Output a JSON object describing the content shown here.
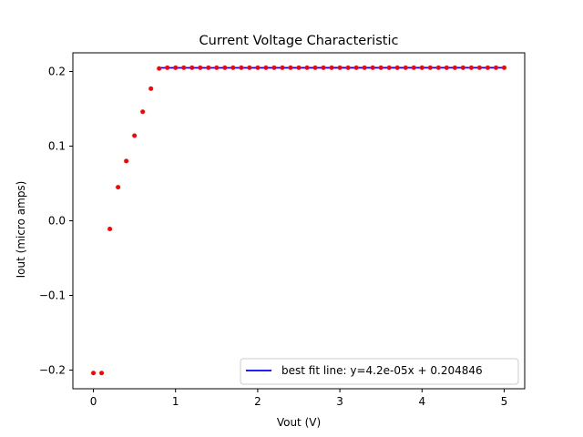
{
  "chart_data": {
    "type": "scatter",
    "title": "Current Voltage Characteristic",
    "xlabel": "Vout (V)",
    "ylabel": "Iout (micro amps)",
    "xlim": [
      -0.25,
      5.25
    ],
    "ylim": [
      -0.225,
      0.225
    ],
    "xticks": [
      0,
      1,
      2,
      3,
      4,
      5
    ],
    "xtick_labels": [
      "0",
      "1",
      "2",
      "3",
      "4",
      "5"
    ],
    "yticks": [
      -0.2,
      -0.1,
      0.0,
      0.1,
      0.2
    ],
    "ytick_labels": [
      "−0.2",
      "−0.1",
      "0.0",
      "0.1",
      "0.2"
    ],
    "grid": false,
    "legend_position": "lower-right",
    "series": [
      {
        "kind": "scatter",
        "color": "#ff0000",
        "x": [
          0.0,
          0.1,
          0.2,
          0.3,
          0.4,
          0.5,
          0.6,
          0.7,
          0.8,
          0.9,
          1.0,
          1.1,
          1.2,
          1.3,
          1.4,
          1.5,
          1.6,
          1.7,
          1.8,
          1.9,
          2.0,
          2.1,
          2.2,
          2.3,
          2.4,
          2.5,
          2.6,
          2.7,
          2.8,
          2.9,
          3.0,
          3.1,
          3.2,
          3.3,
          3.4,
          3.5,
          3.6,
          3.7,
          3.8,
          3.9,
          4.0,
          4.1,
          4.2,
          4.3,
          4.4,
          4.5,
          4.6,
          4.7,
          4.8,
          4.9,
          5.0
        ],
        "y": [
          -0.204,
          -0.204,
          -0.011,
          0.045,
          0.08,
          0.114,
          0.146,
          0.177,
          0.204,
          0.205,
          0.205,
          0.205,
          0.205,
          0.205,
          0.205,
          0.205,
          0.205,
          0.205,
          0.205,
          0.205,
          0.205,
          0.205,
          0.205,
          0.205,
          0.205,
          0.205,
          0.205,
          0.205,
          0.205,
          0.205,
          0.205,
          0.205,
          0.205,
          0.205,
          0.205,
          0.205,
          0.205,
          0.205,
          0.205,
          0.205,
          0.205,
          0.205,
          0.205,
          0.205,
          0.205,
          0.205,
          0.205,
          0.205,
          0.205,
          0.205,
          0.205
        ]
      },
      {
        "kind": "line",
        "name": "best fit line: y=4.2e-05x + 0.204846",
        "color": "#0000ff",
        "x": [
          0.8,
          5.0
        ],
        "y": [
          0.20488,
          0.205056
        ]
      }
    ]
  }
}
